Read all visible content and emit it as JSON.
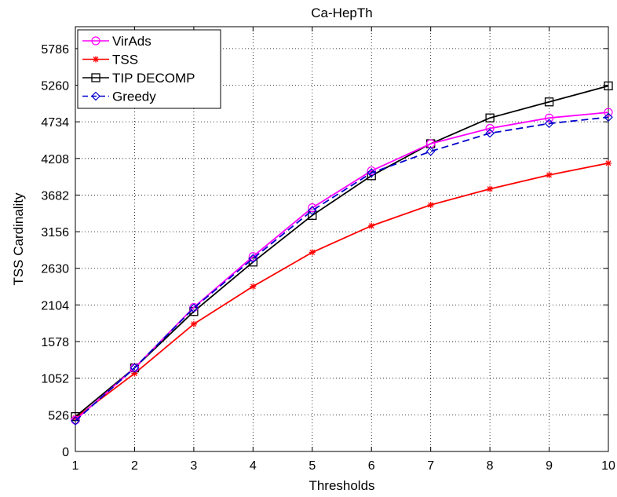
{
  "chart_data": {
    "type": "line",
    "title": "Ca-HepTh",
    "xlabel": "Thresholds",
    "ylabel": "TSS Cardinality",
    "x": [
      1,
      2,
      3,
      4,
      5,
      6,
      7,
      8,
      9,
      10
    ],
    "xlim": [
      1,
      10
    ],
    "ylim": [
      0,
      6100
    ],
    "yticks": [
      0,
      526,
      1052,
      1578,
      2104,
      2630,
      3156,
      3682,
      4208,
      4734,
      5260,
      5786
    ],
    "grid": true,
    "legend_position": "top-left",
    "series": [
      {
        "name": "VirAds",
        "color": "#ff00ff",
        "marker": "circle",
        "dash": "solid",
        "values": [
          450,
          1200,
          2070,
          2800,
          3500,
          4030,
          4420,
          4640,
          4790,
          4870
        ]
      },
      {
        "name": "TSS",
        "color": "#ff0000",
        "marker": "star",
        "dash": "solid",
        "values": [
          480,
          1120,
          1830,
          2370,
          2860,
          3240,
          3540,
          3770,
          3970,
          4140
        ]
      },
      {
        "name": "TIP DECOMP",
        "color": "#000000",
        "marker": "square",
        "dash": "solid",
        "values": [
          500,
          1200,
          2010,
          2720,
          3390,
          3960,
          4420,
          4790,
          5020,
          5250
        ]
      },
      {
        "name": "Greedy",
        "color": "#0000cc",
        "marker": "diamond",
        "dash": "dashed",
        "values": [
          440,
          1200,
          2060,
          2770,
          3460,
          4000,
          4310,
          4570,
          4710,
          4800
        ]
      }
    ]
  }
}
